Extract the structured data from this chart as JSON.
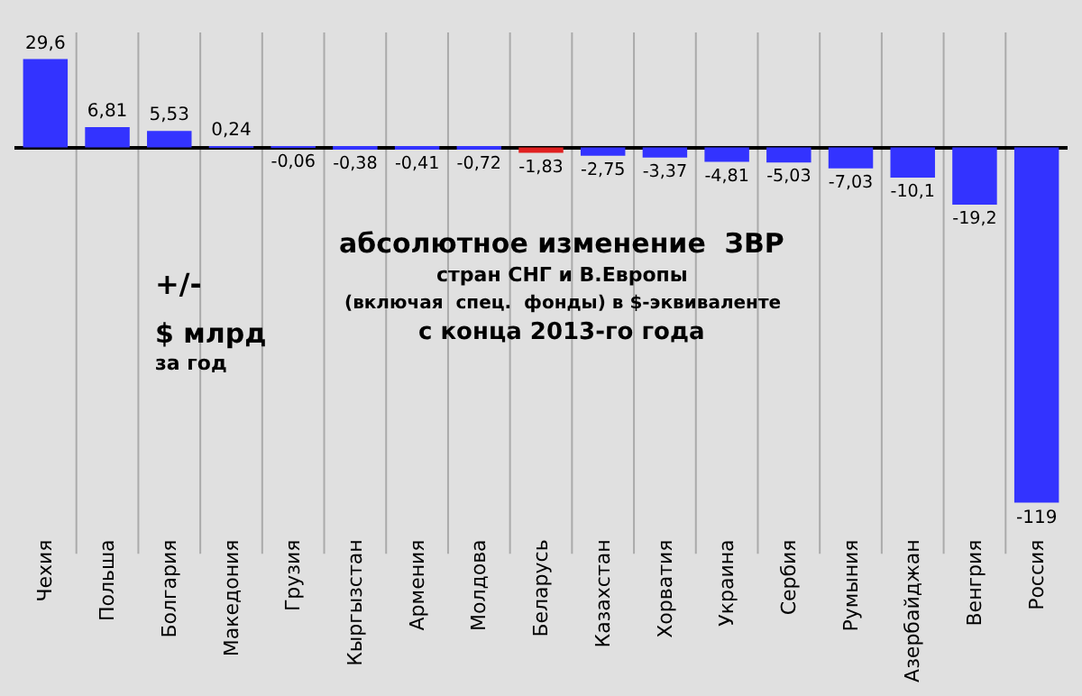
{
  "chart_data": {
    "type": "bar",
    "categories": [
      "Чехия",
      "Польша",
      "Болгария",
      "Македония",
      "Грузия",
      "Кыргызстан",
      "Армения",
      "Молдова",
      "Беларусь",
      "Казахстан",
      "Хорватия",
      "Украина",
      "Сербия",
      "Румыния",
      "Азербайджан",
      "Венгрия",
      "Россия"
    ],
    "values": [
      29.6,
      6.81,
      5.53,
      0.24,
      -0.06,
      -0.38,
      -0.41,
      -0.72,
      -1.83,
      -2.75,
      -3.37,
      -4.81,
      -5.03,
      -7.03,
      -10.1,
      -19.2,
      -119
    ],
    "colors": [
      "#3333ff",
      "#3333ff",
      "#3333ff",
      "#3333ff",
      "#3333ff",
      "#3333ff",
      "#3333ff",
      "#3333ff",
      "#e02020",
      "#3333ff",
      "#3333ff",
      "#3333ff",
      "#3333ff",
      "#3333ff",
      "#3333ff",
      "#3333ff",
      "#3333ff"
    ],
    "value_labels": [
      "29,6",
      "6,81",
      "5,53",
      "0,24",
      "-0,06",
      "-0,38",
      "-0,41",
      "-0,72",
      "-1,83",
      "-2,75",
      "-3,37",
      "-4,81",
      "-5,03",
      "-7,03",
      "-10,1",
      "-19,2",
      "-119"
    ],
    "annotations": [
      "абсолютное изменение  ЗВР",
      "стран СНГ и В.Европы",
      "(включая  спец.  фонды) в $-эквиваленте",
      "с конца 2013-го года",
      "+/-",
      "$ млрд",
      "за год"
    ],
    "grid": "x",
    "tick_labels": "x"
  }
}
